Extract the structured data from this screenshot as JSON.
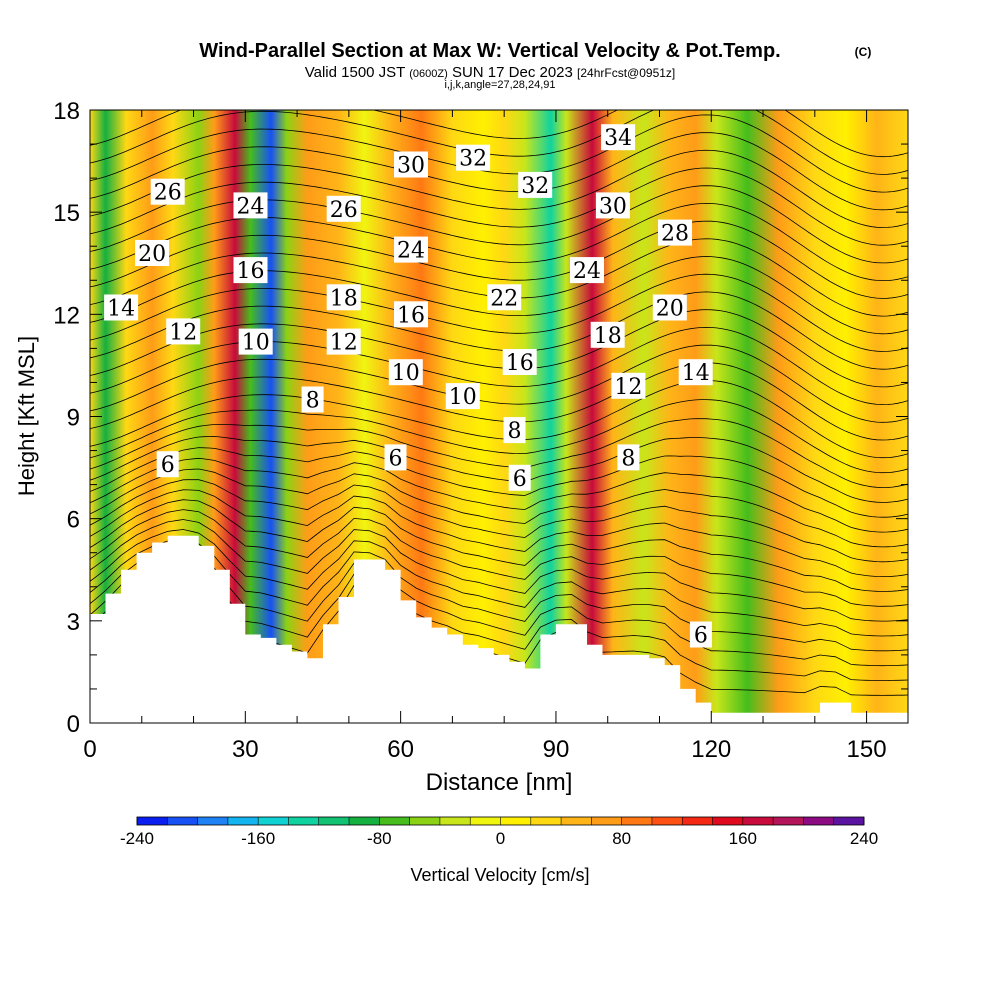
{
  "title": {
    "main": "Wind-Parallel Section at Max W: Vertical Velocity & Pot.Temp.",
    "copyright": "(C)",
    "valid_prefix": "Valid 1500 JST",
    "valid_utc": "(0600Z)",
    "valid_date": "SUN 17 Dec 2023",
    "forecast": "[24hrFcst@0951z]",
    "indices": "i,j,k,angle=27,28,24,91"
  },
  "chart_data": {
    "type": "heatmap",
    "xlabel": "Distance [nm]",
    "ylabel": "Height [Kft MSL]",
    "xlim": [
      0,
      158
    ],
    "ylim": [
      0,
      18
    ],
    "x_ticks": [
      "0",
      "30",
      "60",
      "90",
      "120",
      "150"
    ],
    "y_ticks": [
      "0",
      "3",
      "6",
      "9",
      "12",
      "15",
      "18"
    ],
    "grid": false,
    "field": "Vertical Velocity",
    "field_units": "cm/s",
    "colorbar": {
      "label": "Vertical Velocity [cm/s]",
      "min": -240,
      "max": 240,
      "step": 20,
      "tick_labels": [
        "-240",
        "-160",
        "-80",
        "0",
        "80",
        "160",
        "240"
      ],
      "colors": [
        "#0a1ef0",
        "#1750f5",
        "#1e82f5",
        "#14b4f0",
        "#10d2d2",
        "#10d2a0",
        "#12c272",
        "#14b040",
        "#46bd1c",
        "#8cd214",
        "#c8e61a",
        "#f0f510",
        "#fff000",
        "#ffd814",
        "#ffb418",
        "#ff9c18",
        "#ff7814",
        "#ff5014",
        "#f52814",
        "#e00a1e",
        "#c80a3c",
        "#b4145a",
        "#8c0a82",
        "#5a14a0"
      ]
    },
    "vertical_velocity_bands": [
      {
        "x": 0,
        "value": 20
      },
      {
        "x": 3,
        "value": -100
      },
      {
        "x": 7,
        "value": 20
      },
      {
        "x": 12,
        "value": 60
      },
      {
        "x": 16,
        "value": 30
      },
      {
        "x": 21,
        "value": -60
      },
      {
        "x": 24,
        "value": 70
      },
      {
        "x": 28,
        "value": 170
      },
      {
        "x": 31,
        "value": -70
      },
      {
        "x": 35,
        "value": -220
      },
      {
        "x": 38,
        "value": -60
      },
      {
        "x": 42,
        "value": 60
      },
      {
        "x": 48,
        "value": 40
      },
      {
        "x": 53,
        "value": -20
      },
      {
        "x": 58,
        "value": 50
      },
      {
        "x": 64,
        "value": 80
      },
      {
        "x": 70,
        "value": 30
      },
      {
        "x": 76,
        "value": 10
      },
      {
        "x": 80,
        "value": 20
      },
      {
        "x": 84,
        "value": -40
      },
      {
        "x": 89,
        "value": -130
      },
      {
        "x": 92,
        "value": -30
      },
      {
        "x": 97,
        "value": 175
      },
      {
        "x": 101,
        "value": 40
      },
      {
        "x": 107,
        "value": -40
      },
      {
        "x": 112,
        "value": 40
      },
      {
        "x": 117,
        "value": 60
      },
      {
        "x": 121,
        "value": -30
      },
      {
        "x": 127,
        "value": -80
      },
      {
        "x": 133,
        "value": 60
      },
      {
        "x": 140,
        "value": 30
      },
      {
        "x": 146,
        "value": 10
      },
      {
        "x": 152,
        "value": 40
      },
      {
        "x": 158,
        "value": 20
      }
    ],
    "terrain": {
      "x": [
        0,
        3,
        6,
        9,
        12,
        15,
        18,
        21,
        24,
        27,
        30,
        33,
        36,
        39,
        42,
        45,
        48,
        51,
        54,
        57,
        60,
        63,
        66,
        69,
        72,
        75,
        78,
        81,
        84,
        87,
        90,
        93,
        96,
        99,
        102,
        105,
        108,
        111,
        114,
        117,
        120,
        123,
        126,
        129,
        132,
        135,
        138,
        141,
        144,
        147,
        150,
        153,
        158
      ],
      "height": [
        3.2,
        3.8,
        4.5,
        5.0,
        5.3,
        5.5,
        5.5,
        5.2,
        4.5,
        3.5,
        2.6,
        2.5,
        2.3,
        2.1,
        1.9,
        2.9,
        3.7,
        4.8,
        4.8,
        4.5,
        3.6,
        3.1,
        2.8,
        2.6,
        2.3,
        2.2,
        2.0,
        1.8,
        1.6,
        2.6,
        2.9,
        2.9,
        2.3,
        2.0,
        2.0,
        2.0,
        1.9,
        1.7,
        1.0,
        0.6,
        0.3,
        0.3,
        0.3,
        0.3,
        0.3,
        0.3,
        0.3,
        0.6,
        0.6,
        0.3,
        0.3,
        0.3,
        0.3
      ]
    },
    "contour_labels": [
      {
        "text": "26",
        "x": 15,
        "y": 15.6
      },
      {
        "text": "24",
        "x": 31,
        "y": 15.2
      },
      {
        "text": "20",
        "x": 12,
        "y": 13.8
      },
      {
        "text": "16",
        "x": 31,
        "y": 13.3
      },
      {
        "text": "14",
        "x": 6,
        "y": 12.2
      },
      {
        "text": "12",
        "x": 18,
        "y": 11.5
      },
      {
        "text": "10",
        "x": 32,
        "y": 11.2
      },
      {
        "text": "8",
        "x": 43,
        "y": 9.5
      },
      {
        "text": "6",
        "x": 15,
        "y": 7.6
      },
      {
        "text": "30",
        "x": 62,
        "y": 16.4
      },
      {
        "text": "32",
        "x": 74,
        "y": 16.6
      },
      {
        "text": "26",
        "x": 49,
        "y": 15.1
      },
      {
        "text": "24",
        "x": 62,
        "y": 13.9
      },
      {
        "text": "18",
        "x": 49,
        "y": 12.5
      },
      {
        "text": "16",
        "x": 62,
        "y": 12.0
      },
      {
        "text": "12",
        "x": 49,
        "y": 11.2
      },
      {
        "text": "10",
        "x": 61,
        "y": 10.3
      },
      {
        "text": "10",
        "x": 72,
        "y": 9.6
      },
      {
        "text": "6",
        "x": 59,
        "y": 7.8
      },
      {
        "text": "32",
        "x": 86,
        "y": 15.8
      },
      {
        "text": "34",
        "x": 102,
        "y": 17.2
      },
      {
        "text": "30",
        "x": 101,
        "y": 15.2
      },
      {
        "text": "28",
        "x": 113,
        "y": 14.4
      },
      {
        "text": "24",
        "x": 96,
        "y": 13.3
      },
      {
        "text": "22",
        "x": 80,
        "y": 12.5
      },
      {
        "text": "20",
        "x": 112,
        "y": 12.2
      },
      {
        "text": "18",
        "x": 100,
        "y": 11.4
      },
      {
        "text": "16",
        "x": 83,
        "y": 10.6
      },
      {
        "text": "14",
        "x": 117,
        "y": 10.3
      },
      {
        "text": "12",
        "x": 104,
        "y": 9.9
      },
      {
        "text": "8",
        "x": 82,
        "y": 8.6
      },
      {
        "text": "8",
        "x": 104,
        "y": 7.8
      },
      {
        "text": "6",
        "x": 83,
        "y": 7.2
      },
      {
        "text": "6",
        "x": 118,
        "y": 2.6
      }
    ]
  }
}
